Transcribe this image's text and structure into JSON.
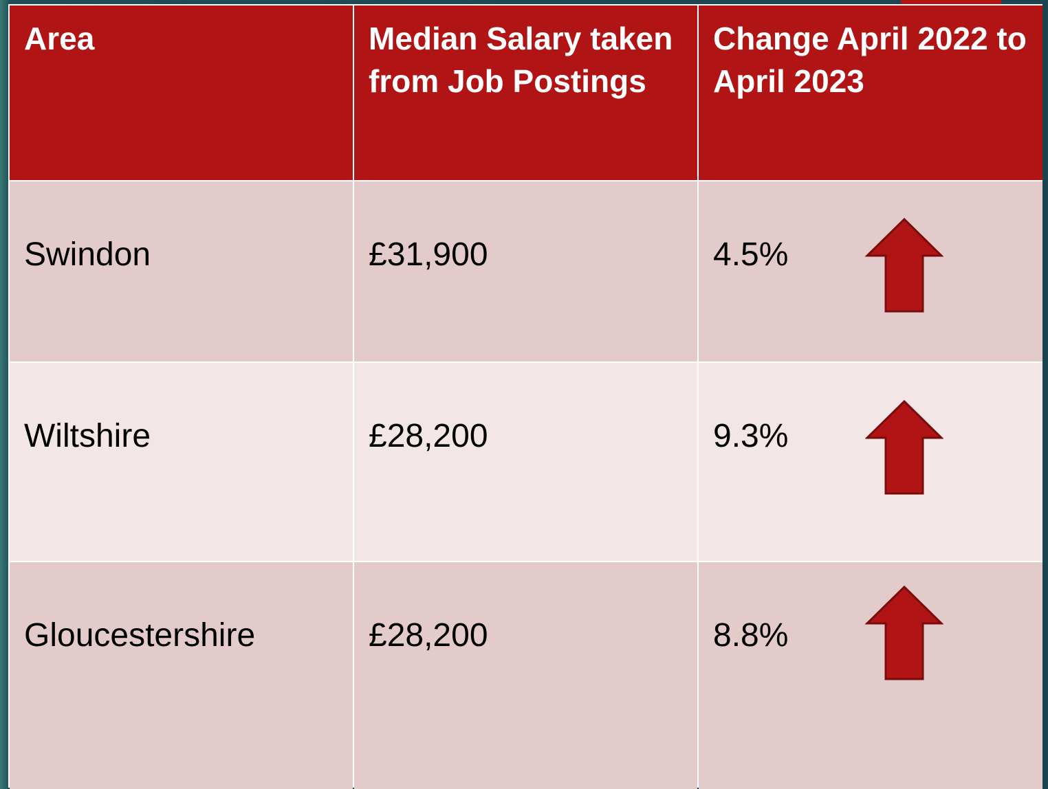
{
  "table": {
    "header": [
      "Area",
      "Median Salary taken from Job Postings",
      "Change April 2022 to April 2023"
    ],
    "rows": [
      [
        "Swindon",
        "£31,900",
        "4.5%"
      ],
      [
        "Wiltshire",
        "£28,200",
        "9.3%"
      ],
      [
        "Gloucestershire",
        "£28,200",
        "8.8%"
      ]
    ]
  }
}
